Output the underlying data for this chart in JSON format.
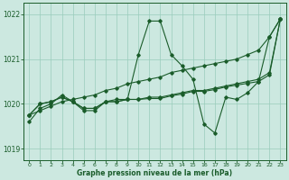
{
  "bg_color": "#cce8e0",
  "grid_color": "#99ccbb",
  "line_color": "#1a5c2a",
  "xlabel": "Graphe pression niveau de la mer (hPa)",
  "ylim": [
    1018.75,
    1022.25
  ],
  "xlim": [
    -0.5,
    23.5
  ],
  "yticks": [
    1019,
    1020,
    1021,
    1022
  ],
  "xticks": [
    0,
    1,
    2,
    3,
    4,
    5,
    6,
    7,
    8,
    9,
    10,
    11,
    12,
    13,
    14,
    15,
    16,
    17,
    18,
    19,
    20,
    21,
    22,
    23
  ],
  "s1": [
    1019.6,
    1019.9,
    1020.0,
    1020.2,
    1020.05,
    1019.85,
    1019.85,
    1020.05,
    1020.1,
    1020.1,
    1021.1,
    1021.85,
    1021.85,
    1021.1,
    1020.85,
    1020.55,
    1019.55,
    1019.35,
    1020.15,
    1020.1,
    1020.25,
    1020.5,
    1021.5,
    1021.9
  ],
  "s2": [
    1019.75,
    1019.85,
    1019.95,
    1020.05,
    1020.1,
    1020.15,
    1020.2,
    1020.3,
    1020.35,
    1020.45,
    1020.5,
    1020.55,
    1020.6,
    1020.7,
    1020.75,
    1020.8,
    1020.85,
    1020.9,
    1020.95,
    1021.0,
    1021.1,
    1021.2,
    1021.5,
    1021.9
  ],
  "s3": [
    1019.75,
    1020.0,
    1020.05,
    1020.15,
    1020.05,
    1019.9,
    1019.9,
    1020.05,
    1020.05,
    1020.1,
    1020.1,
    1020.15,
    1020.15,
    1020.2,
    1020.25,
    1020.3,
    1020.3,
    1020.35,
    1020.4,
    1020.45,
    1020.5,
    1020.55,
    1020.7,
    1021.9
  ],
  "s4": [
    1019.75,
    1020.0,
    1020.05,
    1020.15,
    1020.05,
    1019.9,
    1019.9,
    1020.05,
    1020.05,
    1020.1,
    1020.1,
    1020.12,
    1020.12,
    1020.18,
    1020.22,
    1020.28,
    1020.28,
    1020.32,
    1020.38,
    1020.42,
    1020.46,
    1020.5,
    1020.65,
    1021.9
  ]
}
